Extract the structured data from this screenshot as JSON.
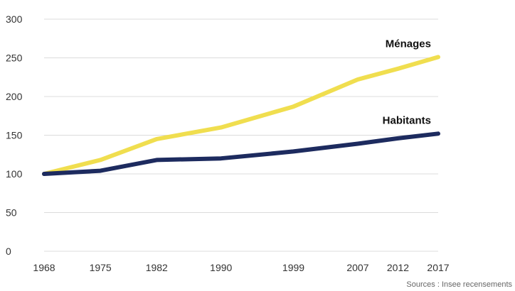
{
  "chart_data": {
    "type": "line",
    "x": [
      1968,
      1975,
      1982,
      1990,
      1999,
      2007,
      2012,
      2017
    ],
    "series": [
      {
        "name": "Ménages",
        "values": [
          100,
          118,
          145,
          160,
          187,
          222,
          236,
          251
        ],
        "color": "#f0de4f"
      },
      {
        "name": "Habitants",
        "values": [
          100,
          104,
          118,
          120,
          129,
          139,
          146,
          152
        ],
        "color": "#1d2b5f"
      }
    ],
    "ylim": [
      0,
      300
    ],
    "yticks": [
      0,
      50,
      100,
      150,
      200,
      250,
      300
    ],
    "xticks": [
      "1968",
      "1975",
      "1982",
      "1990",
      "1999",
      "2007",
      "2012",
      "2017"
    ],
    "grid": true,
    "source": "Sources : Insee recensements"
  }
}
